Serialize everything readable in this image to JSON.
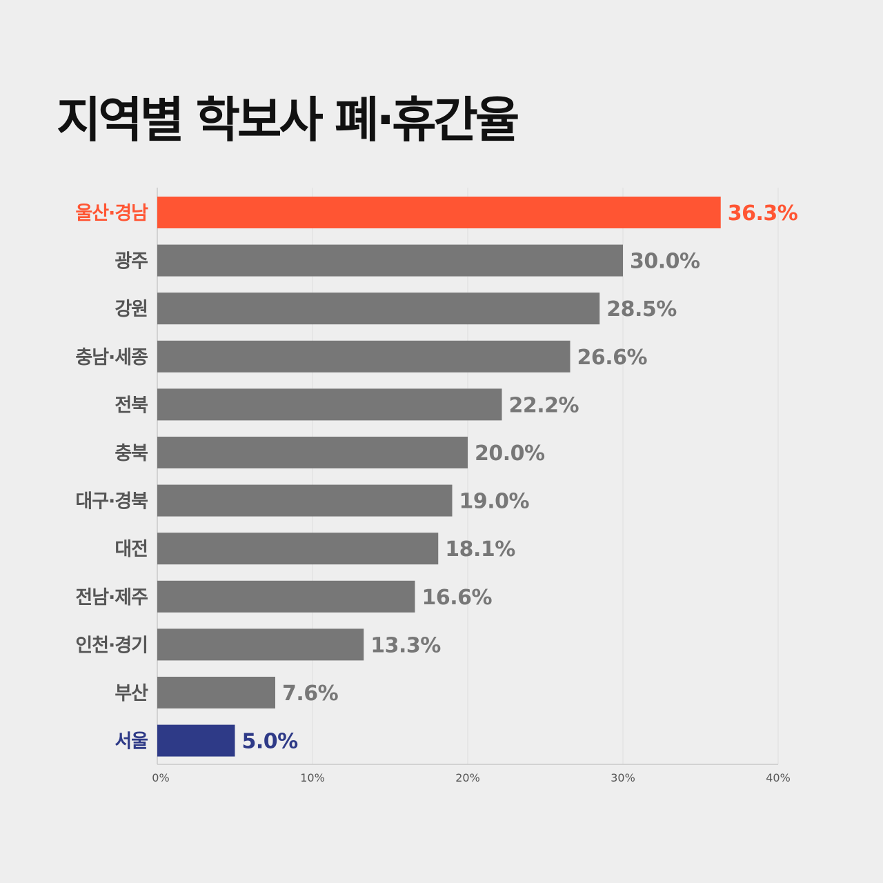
{
  "chart_data": {
    "type": "bar",
    "orientation": "horizontal",
    "title": "지역별 학보사 폐·휴간율",
    "categories": [
      "울산·경남",
      "광주",
      "강원",
      "충남·세종",
      "전북",
      "충북",
      "대구·경북",
      "대전",
      "전남·제주",
      "인천·경기",
      "부산",
      "서울"
    ],
    "values": [
      36.3,
      30.0,
      28.5,
      26.6,
      22.2,
      20.0,
      19.0,
      18.1,
      16.6,
      13.3,
      7.6,
      5.0
    ],
    "data_labels": [
      "36.3%",
      "30.0%",
      "28.5%",
      "26.6%",
      "22.2%",
      "20.0%",
      "19.0%",
      "18.1%",
      "16.6%",
      "13.3%",
      "7.6%",
      "5.0%"
    ],
    "xlim": [
      0,
      40
    ],
    "ticks": [
      0,
      10,
      20,
      30,
      40
    ],
    "tick_labels": [
      "0%",
      "10%",
      "20%",
      "30%",
      "40%"
    ],
    "grid": true,
    "colors": {
      "default": "#777777",
      "highest": "#ff5533",
      "lowest": "#2e3a87",
      "grid": "#dddddd",
      "axis": "#c8c8c8"
    }
  }
}
